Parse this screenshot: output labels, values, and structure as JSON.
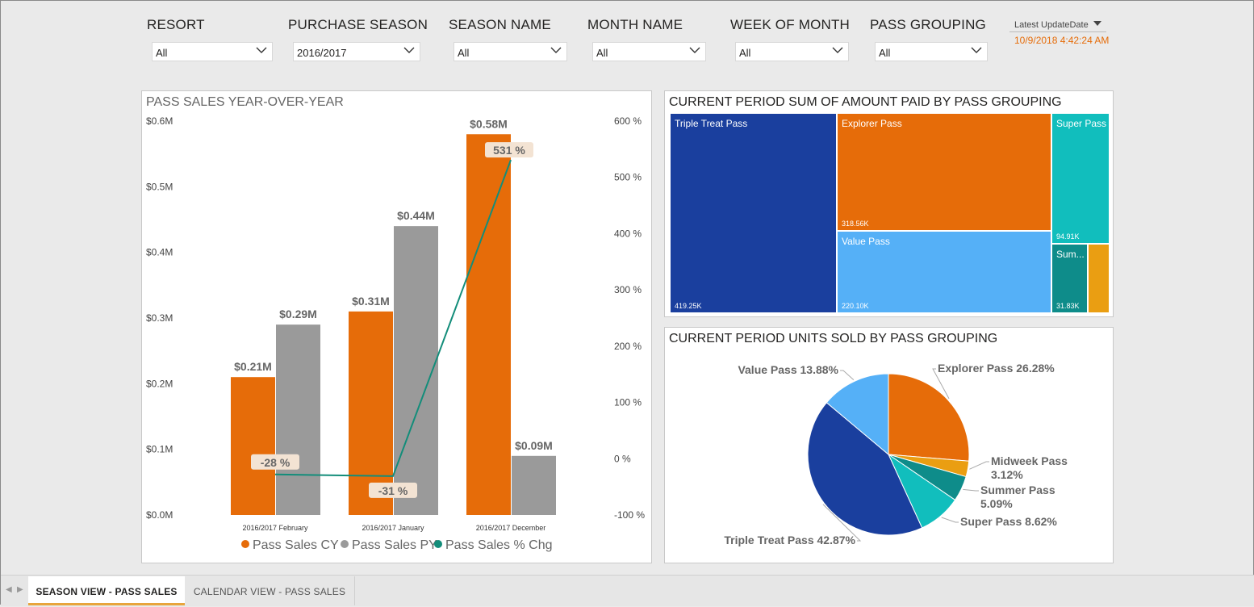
{
  "filters": [
    {
      "label": "RESORT",
      "value": "All"
    },
    {
      "label": "PURCHASE SEASON",
      "value": "2016/2017"
    },
    {
      "label": "SEASON NAME",
      "value": "All"
    },
    {
      "label": "MONTH NAME",
      "value": "All"
    },
    {
      "label": "WEEK OF MONTH",
      "value": "All"
    },
    {
      "label": "PASS GROUPING",
      "value": "All"
    }
  ],
  "update": {
    "label": "Latest UpdateDate",
    "value": "10/9/2018 4:42:24 AM"
  },
  "colors": {
    "cy": "#e66c09",
    "py": "#9a9a9a",
    "chg": "#138d7a",
    "triple": "#1a3f9e",
    "explorer": "#e66c09",
    "super": "#11bebd",
    "value": "#55b0f7",
    "summer": "#0e8c8a",
    "midweek": "#ea9e12"
  },
  "chart_data": [
    {
      "type": "bar",
      "title": "PASS SALES YEAR-OVER-YEAR",
      "categories": [
        "2016/2017 February",
        "2016/2017 January",
        "2016/2017 December"
      ],
      "series": [
        {
          "name": "Pass Sales CY",
          "values": [
            0.21,
            0.31,
            0.58
          ],
          "labels": [
            "$0.21M",
            "$0.31M",
            "$0.58M"
          ]
        },
        {
          "name": "Pass Sales PY",
          "values": [
            0.29,
            0.44,
            0.09
          ],
          "labels": [
            "$0.29M",
            "$0.44M",
            "$0.09M"
          ]
        },
        {
          "name": "Pass Sales % Chg",
          "type": "line",
          "axis": "right",
          "values": [
            -28,
            -31,
            531
          ],
          "labels": [
            "-28 %",
            "-31 %",
            "531 %"
          ]
        }
      ],
      "y_ticks": [
        "$0.6M",
        "$0.5M",
        "$0.4M",
        "$0.3M",
        "$0.2M",
        "$0.1M",
        "$0.0M"
      ],
      "ylim": [
        0,
        0.6
      ],
      "y2_ticks": [
        "600 %",
        "500 %",
        "400 %",
        "300 %",
        "200 %",
        "100 %",
        "0 %",
        "-100 %"
      ],
      "y2lim": [
        -100,
        600
      ],
      "legend": "bottom"
    },
    {
      "type": "treemap",
      "title": "CURRENT PERIOD SUM OF AMOUNT PAID BY PASS GROUPING",
      "items": [
        {
          "name": "Triple Treat Pass",
          "label": "419.25K",
          "value": 419.25
        },
        {
          "name": "Explorer Pass",
          "label": "318.56K",
          "value": 318.56
        },
        {
          "name": "Value Pass",
          "label": "220.10K",
          "value": 220.1
        },
        {
          "name": "Super Pass",
          "label": "94.91K",
          "value": 94.91
        },
        {
          "name": "Sum...",
          "label": "31.83K",
          "value": 31.83
        },
        {
          "name": "",
          "label": "",
          "value": 18
        }
      ]
    },
    {
      "type": "pie",
      "title": "CURRENT PERIOD UNITS SOLD BY PASS GROUPING",
      "slices": [
        {
          "name": "Explorer Pass",
          "value": 26.28,
          "label": "Explorer Pass 26.28%"
        },
        {
          "name": "Midweek Pass",
          "value": 3.12,
          "label": "Midweek Pass",
          "label2": "3.12%"
        },
        {
          "name": "Summer Pass",
          "value": 5.09,
          "label": "Summer Pass",
          "label2": "5.09%"
        },
        {
          "name": "Super Pass",
          "value": 8.62,
          "label": "Super Pass 8.62%"
        },
        {
          "name": "Triple Treat Pass",
          "value": 42.87,
          "label": "Triple Treat Pass 42.87%"
        },
        {
          "name": "Value Pass",
          "value": 13.88,
          "label": "Value Pass 13.88%"
        }
      ]
    }
  ],
  "tabs": [
    {
      "label": "SEASON VIEW - PASS SALES",
      "active": true
    },
    {
      "label": "CALENDAR VIEW - PASS SALES",
      "active": false
    }
  ]
}
